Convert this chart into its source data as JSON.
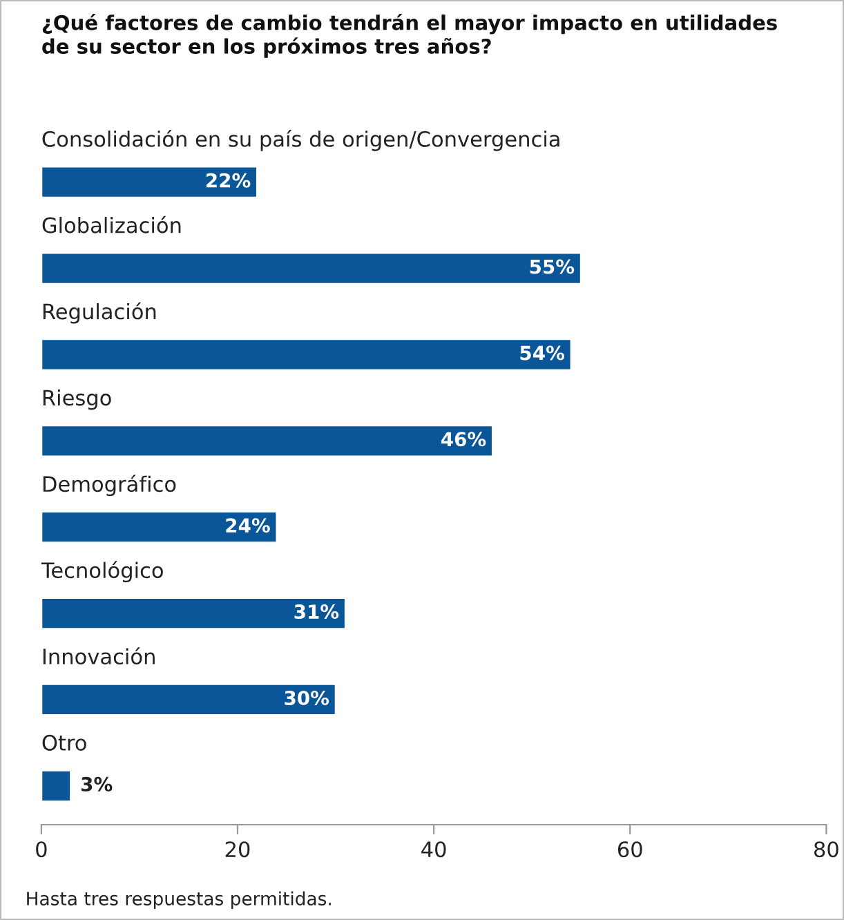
{
  "chart_data": {
    "type": "bar",
    "orientation": "horizontal",
    "title": "¿Qué factores de cambio tendrán el mayor impacto en utilidades\nde su sector en los próximos tres años?",
    "categories": [
      "Consolidación en su país de origen/Convergencia",
      "Globalización",
      "Regulación",
      "Riesgo",
      "Demográfico",
      "Tecnológico",
      "Innovación",
      "Otro"
    ],
    "values": [
      22,
      55,
      54,
      46,
      24,
      31,
      30,
      3
    ],
    "value_labels": [
      "22%",
      "55%",
      "54%",
      "46%",
      "24%",
      "31%",
      "30%",
      "3%"
    ],
    "color": "#0a5699",
    "xlim": [
      0,
      80
    ],
    "xticks": [
      0,
      20,
      40,
      60,
      80
    ],
    "grid": false,
    "legend": false,
    "annotations": [
      "Hasta tres respuestas permitidas."
    ]
  }
}
